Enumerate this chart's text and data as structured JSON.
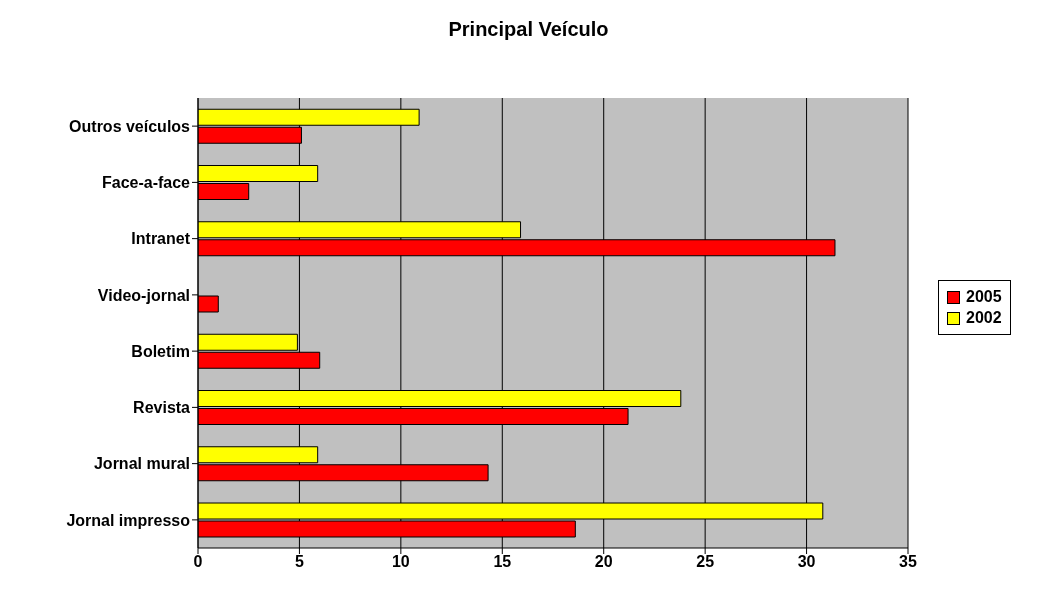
{
  "chart_data": {
    "type": "bar",
    "orientation": "horizontal",
    "title": "Principal Veículo",
    "categories": [
      "Outros veículos",
      "Face-a-face",
      "Intranet",
      "Video-jornal",
      "Boletim",
      "Revista",
      "Jornal mural",
      "Jornal impresso"
    ],
    "series": [
      {
        "name": "2005",
        "color": "#ff0000",
        "values": [
          5.1,
          2.5,
          31.4,
          1,
          6,
          21.2,
          14.3,
          18.6
        ]
      },
      {
        "name": "2002",
        "color": "#ffff00",
        "values": [
          10.9,
          5.9,
          15.9,
          0,
          4.9,
          23.8,
          5.9,
          30.8
        ]
      }
    ],
    "xlim": [
      0,
      35
    ],
    "xticks": [
      0,
      5,
      10,
      15,
      20,
      25,
      30,
      35
    ],
    "grid": "x",
    "legend": "right"
  }
}
